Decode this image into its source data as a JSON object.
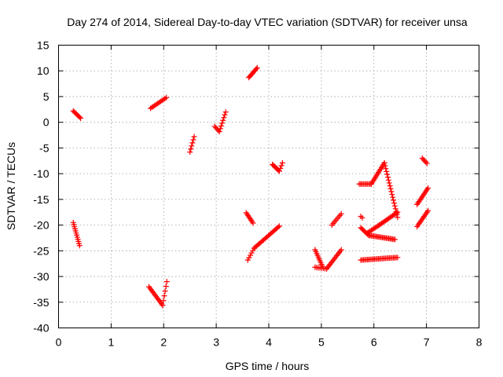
{
  "chart_data": {
    "type": "scatter",
    "title": "Day 274 of 2014, Sidereal Day-to-day VTEC variation (SDTVAR) for receiver unsa",
    "xlabel": "GPS time / hours",
    "ylabel": "SDTVAR / TECUs",
    "xlim": [
      0,
      8
    ],
    "ylim": [
      -40,
      15
    ],
    "xticks": [
      0,
      1,
      2,
      3,
      4,
      5,
      6,
      7,
      8
    ],
    "yticks": [
      -40,
      -35,
      -30,
      -25,
      -20,
      -15,
      -10,
      -5,
      0,
      5,
      10,
      15
    ],
    "grid": true,
    "marker": "plus",
    "color": "#ff0000",
    "series": [
      {
        "name": "SDTVAR",
        "segments": [
          {
            "x0": 0.28,
            "y0": 2.2,
            "x1": 0.42,
            "y1": 0.8,
            "n": 8
          },
          {
            "x0": 0.28,
            "y0": -19.5,
            "x1": 0.4,
            "y1": -24.0,
            "n": 12
          },
          {
            "x0": 1.75,
            "y0": 2.7,
            "x1": 2.05,
            "y1": 4.8,
            "n": 12
          },
          {
            "x0": 1.72,
            "y0": -32.0,
            "x1": 1.98,
            "y1": -35.6,
            "n": 14
          },
          {
            "x0": 1.98,
            "y0": -35.6,
            "x1": 2.06,
            "y1": -31.0,
            "n": 6
          },
          {
            "x0": 2.5,
            "y0": -5.8,
            "x1": 2.58,
            "y1": -2.8,
            "n": 6
          },
          {
            "x0": 2.97,
            "y0": -0.8,
            "x1": 3.06,
            "y1": -1.8,
            "n": 5
          },
          {
            "x0": 3.06,
            "y0": -1.8,
            "x1": 3.18,
            "y1": 2.0,
            "n": 8
          },
          {
            "x0": 3.62,
            "y0": 8.7,
            "x1": 3.78,
            "y1": 10.6,
            "n": 10
          },
          {
            "x0": 3.57,
            "y0": -17.6,
            "x1": 3.7,
            "y1": -19.6,
            "n": 8
          },
          {
            "x0": 3.6,
            "y0": -26.8,
            "x1": 3.72,
            "y1": -24.5,
            "n": 6
          },
          {
            "x0": 3.72,
            "y0": -24.5,
            "x1": 4.2,
            "y1": -20.2,
            "n": 22
          },
          {
            "x0": 4.07,
            "y0": -8.2,
            "x1": 4.2,
            "y1": -9.5,
            "n": 8
          },
          {
            "x0": 4.2,
            "y0": -9.5,
            "x1": 4.26,
            "y1": -7.9,
            "n": 4
          },
          {
            "x0": 4.88,
            "y0": -24.8,
            "x1": 5.02,
            "y1": -28.0,
            "n": 10
          },
          {
            "x0": 4.88,
            "y0": -28.2,
            "x1": 5.1,
            "y1": -28.5,
            "n": 8
          },
          {
            "x0": 5.1,
            "y0": -28.5,
            "x1": 5.38,
            "y1": -24.8,
            "n": 14
          },
          {
            "x0": 5.2,
            "y0": -20.0,
            "x1": 5.38,
            "y1": -17.8,
            "n": 8
          },
          {
            "x0": 5.72,
            "y0": -12.0,
            "x1": 5.95,
            "y1": -12.0,
            "n": 10
          },
          {
            "x0": 5.95,
            "y0": -12.0,
            "x1": 6.2,
            "y1": -7.9,
            "n": 14
          },
          {
            "x0": 6.2,
            "y0": -7.9,
            "x1": 6.45,
            "y1": -18.5,
            "n": 20
          },
          {
            "x0": 5.75,
            "y0": -18.3,
            "x1": 5.78,
            "y1": -18.6,
            "n": 2
          },
          {
            "x0": 5.75,
            "y0": -20.5,
            "x1": 5.9,
            "y1": -22.0,
            "n": 8
          },
          {
            "x0": 5.9,
            "y0": -22.0,
            "x1": 6.4,
            "y1": -22.8,
            "n": 22
          },
          {
            "x0": 5.75,
            "y0": -26.8,
            "x1": 6.45,
            "y1": -26.3,
            "n": 28
          },
          {
            "x0": 5.88,
            "y0": -21.5,
            "x1": 6.1,
            "y1": -20.0,
            "n": 10
          },
          {
            "x0": 6.1,
            "y0": -20.0,
            "x1": 6.45,
            "y1": -17.5,
            "n": 16
          },
          {
            "x0": 6.82,
            "y0": -16.0,
            "x1": 7.03,
            "y1": -12.8,
            "n": 12
          },
          {
            "x0": 6.82,
            "y0": -20.3,
            "x1": 7.03,
            "y1": -17.2,
            "n": 12
          },
          {
            "x0": 6.92,
            "y0": -7.0,
            "x1": 7.01,
            "y1": -8.0,
            "n": 5
          }
        ]
      }
    ]
  }
}
